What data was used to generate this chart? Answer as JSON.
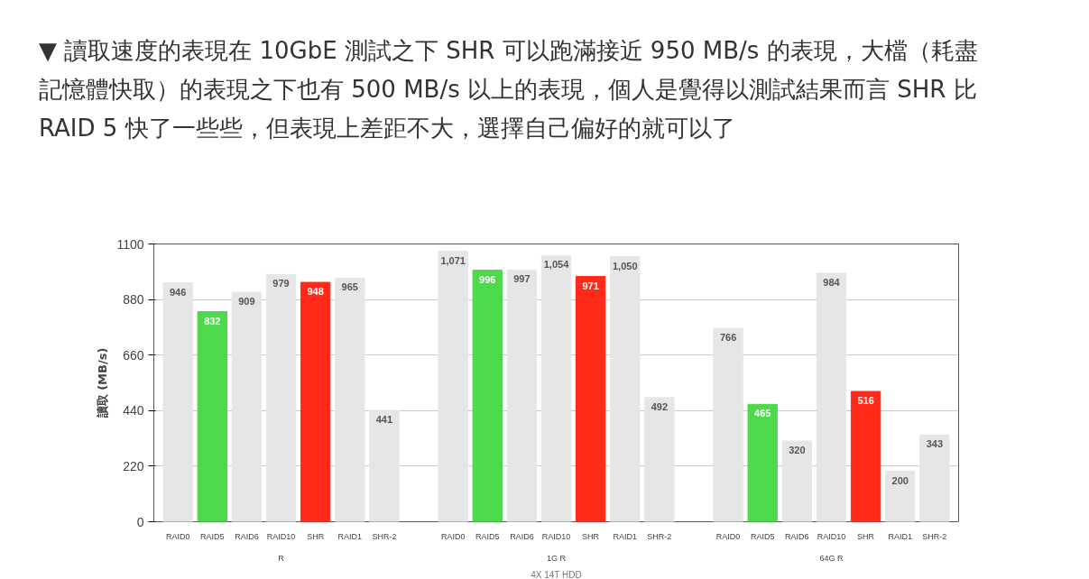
{
  "chart_data": {
    "type": "bar",
    "title": "▼ 讀取速度的表現在 10GbE 測試之下 SHR 可以跑滿接近 950 MB/s 的表現，大檔（耗盡記憶體快取）的表現之下也有 500 MB/s 以上的表現，個人是覺得以測試結果而言 SHR 比 RAID 5 快了一些些，但表現上差距不大，選擇自己偏好的就可以了",
    "categories": [
      "RAID0",
      "RAID5",
      "RAID6",
      "RAID10",
      "SHR",
      "RAID1",
      "SHR-2",
      "RAID0",
      "RAID5",
      "RAID6",
      "RAID10",
      "SHR",
      "RAID1",
      "SHR-2",
      "RAID0",
      "RAID5",
      "RAID6",
      "RAID10",
      "SHR",
      "RAID1",
      "SHR-2"
    ],
    "values": [
      946,
      832,
      909,
      979,
      948,
      965,
      441,
      1071,
      996,
      997,
      1054,
      971,
      1050,
      492,
      766,
      465,
      320,
      984,
      516,
      200,
      343
    ],
    "value_labels": [
      "946",
      "832",
      "909",
      "979",
      "948",
      "965",
      "441",
      "1,071",
      "996",
      "997",
      "1,054",
      "971",
      "1,050",
      "492",
      "766",
      "465",
      "320",
      "984",
      "516",
      "200",
      "343"
    ],
    "colors": [
      "#e6e6e6",
      "#4cd94c",
      "#e6e6e6",
      "#e6e6e6",
      "#ff2a1a",
      "#e6e6e6",
      "#e6e6e6",
      "#e6e6e6",
      "#4cd94c",
      "#e6e6e6",
      "#e6e6e6",
      "#ff2a1a",
      "#e6e6e6",
      "#e6e6e6",
      "#e6e6e6",
      "#4cd94c",
      "#e6e6e6",
      "#e6e6e6",
      "#ff2a1a",
      "#e6e6e6",
      "#e6e6e6"
    ],
    "annotations": [
      "R",
      "1G R",
      "64G R"
    ],
    "xlabel": "4X 14T HDD",
    "ylabel": "讀取 (MB/s)",
    "ylim": [
      0,
      1100
    ],
    "yticks": [
      0,
      220,
      440,
      660,
      880,
      1100
    ],
    "grid": "y"
  }
}
